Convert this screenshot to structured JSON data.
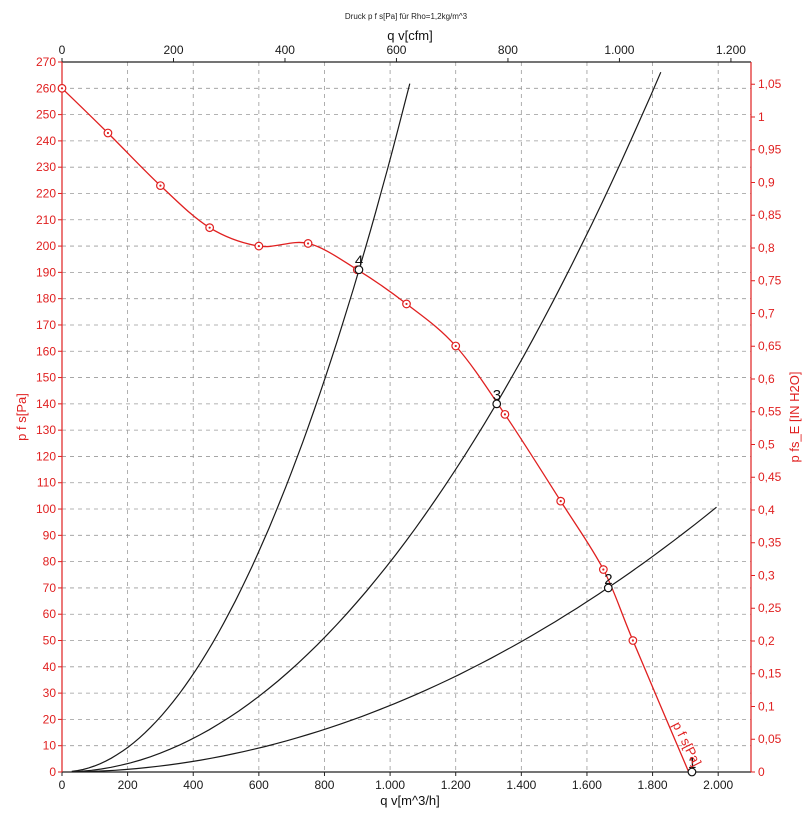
{
  "chart_data": {
    "type": "line",
    "title": "Druck p f s[Pa] für Rho=1,2kg/m^3",
    "xlabel_bottom": "q v[m^3/h]",
    "xlabel_top": "q v[cfm]",
    "ylabel_left": "p f s[Pa]",
    "ylabel_right": "p fs_E [IN H2O]",
    "xlim": [
      0,
      2100
    ],
    "ylim": [
      0,
      270
    ],
    "x_ticks_bottom": [
      {
        "v": 0,
        "label": "0"
      },
      {
        "v": 200,
        "label": "200"
      },
      {
        "v": 400,
        "label": "400"
      },
      {
        "v": 600,
        "label": "600"
      },
      {
        "v": 800,
        "label": "800"
      },
      {
        "v": 1000,
        "label": "1.000"
      },
      {
        "v": 1200,
        "label": "1.200"
      },
      {
        "v": 1400,
        "label": "1.400"
      },
      {
        "v": 1600,
        "label": "1.600"
      },
      {
        "v": 1800,
        "label": "1.800"
      },
      {
        "v": 2000,
        "label": "2.000"
      }
    ],
    "x_ticks_top": [
      {
        "v": 0,
        "label": "0"
      },
      {
        "v": 200,
        "label": "200"
      },
      {
        "v": 400,
        "label": "400"
      },
      {
        "v": 600,
        "label": "600"
      },
      {
        "v": 800,
        "label": "800"
      },
      {
        "v": 1000,
        "label": "1.000"
      },
      {
        "v": 1200,
        "label": "1.200"
      }
    ],
    "cfm_per_m3h": 0.588578,
    "y_ticks_left": [
      0,
      10,
      20,
      30,
      40,
      50,
      60,
      70,
      80,
      90,
      100,
      110,
      120,
      130,
      140,
      150,
      160,
      170,
      180,
      190,
      200,
      210,
      220,
      230,
      240,
      250,
      260,
      270
    ],
    "y_ticks_right": [
      {
        "v": 0,
        "label": "0"
      },
      {
        "v": 0.05,
        "label": "0,05"
      },
      {
        "v": 0.1,
        "label": "0,1"
      },
      {
        "v": 0.15,
        "label": "0,15"
      },
      {
        "v": 0.2,
        "label": "0,2"
      },
      {
        "v": 0.25,
        "label": "0,25"
      },
      {
        "v": 0.3,
        "label": "0,3"
      },
      {
        "v": 0.35,
        "label": "0,35"
      },
      {
        "v": 0.4,
        "label": "0,4"
      },
      {
        "v": 0.45,
        "label": "0,45"
      },
      {
        "v": 0.5,
        "label": "0,5"
      },
      {
        "v": 0.55,
        "label": "0,55"
      },
      {
        "v": 0.6,
        "label": "0,6"
      },
      {
        "v": 0.65,
        "label": "0,65"
      },
      {
        "v": 0.7,
        "label": "0,7"
      },
      {
        "v": 0.75,
        "label": "0,75"
      },
      {
        "v": 0.8,
        "label": "0,8"
      },
      {
        "v": 0.85,
        "label": "0,85"
      },
      {
        "v": 0.9,
        "label": "0,9"
      },
      {
        "v": 0.95,
        "label": "0,95"
      },
      {
        "v": 1.0,
        "label": "1"
      },
      {
        "v": 1.05,
        "label": "1,05"
      }
    ],
    "inh2o_per_pa": 0.0040146,
    "grid": true,
    "fan_curve": {
      "name": "p f s[Pa]",
      "color": "#e02020",
      "x": [
        0,
        140,
        300,
        450,
        600,
        750,
        900,
        1050,
        1200,
        1350,
        1520,
        1650,
        1740,
        1910
      ],
      "y": [
        260,
        243,
        223,
        207,
        200,
        201,
        191,
        178,
        162,
        136,
        103,
        77,
        50,
        0
      ]
    },
    "system_curves": [
      {
        "name": "line-4",
        "color": "#1a1a1a",
        "k": 0.000233,
        "x_end": 1060
      },
      {
        "name": "line-3",
        "color": "#1a1a1a",
        "k": 7.99e-05,
        "x_end": 1825
      },
      {
        "name": "line-2",
        "color": "#1a1a1a",
        "k": 2.53e-05,
        "x_end": 1995
      }
    ],
    "operating_points": [
      {
        "label": "1",
        "x": 1920,
        "y": 0
      },
      {
        "label": "2",
        "x": 1665,
        "y": 70
      },
      {
        "label": "3",
        "x": 1325,
        "y": 140
      },
      {
        "label": "4",
        "x": 905,
        "y": 191
      }
    ],
    "curve_annotation": "p f s[Pa]"
  }
}
